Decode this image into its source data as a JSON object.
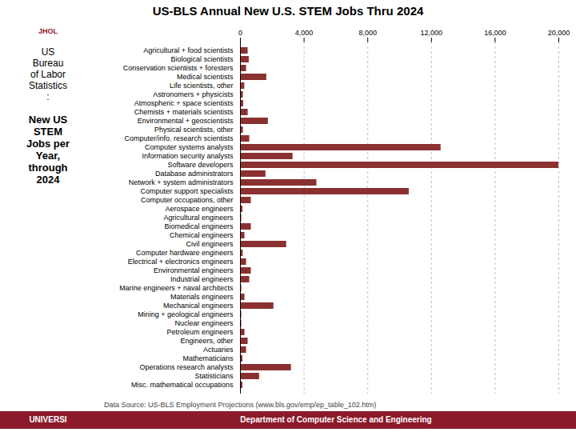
{
  "chart_data": {
    "type": "bar",
    "orientation": "horizontal",
    "title": "US-BLS Annual New U.S. STEM Jobs Thru 2024",
    "categories": [
      "Agricultural + food scientists",
      "Biological scientists",
      "Conservation scientists + foresters",
      "Medical scientists",
      "Life scientists, other",
      "Astronomers + physicists",
      "Atmospheric + space scientists",
      "Chemists + materials scientists",
      "Environmental + geoscientists",
      "Physical scientists, other",
      "Computer/info. research scientists",
      "Computer systems analysts",
      "Information security analysts",
      "Software developers",
      "Database administrators",
      "Network + system administrators",
      "Computer support specialists",
      "Computer occupations, other",
      "Aerospace engineers",
      "Agricultural engineers",
      "Biomedical engineers",
      "Chemical engineers",
      "Civil engineers",
      "Computer hardware engineers",
      "Electrical + electronics engineers",
      "Environmental engineers",
      "Industrial engineers",
      "Marine engineers + naval architects",
      "Materials engineers",
      "Mechanical engineers",
      "Mining + geological engineers",
      "Nuclear engineers",
      "Petroleum engineers",
      "Engineers, other",
      "Actuaries",
      "Mathematicians",
      "Operations research analysts",
      "Statisticians",
      "Misc. mathematical occupations"
    ],
    "values": [
      480,
      550,
      380,
      1650,
      270,
      180,
      200,
      480,
      1750,
      180,
      580,
      12600,
      3300,
      20000,
      1600,
      4800,
      10600,
      680,
      150,
      80,
      680,
      280,
      2900,
      170,
      380,
      680,
      580,
      80,
      280,
      2100,
      80,
      80,
      280,
      480,
      380,
      150,
      3200,
      1200,
      150
    ],
    "color": "#8b3030",
    "xlim": [
      0,
      20000
    ],
    "xticks": [
      0,
      {
        "value": 4000,
        "label": "4,000"
      },
      {
        "value": 8000,
        "label": "8,000"
      },
      {
        "value": 12000,
        "label": "12,000"
      },
      {
        "value": 16000,
        "label": "16,000"
      },
      {
        "value": 20000,
        "label": "20,000"
      }
    ],
    "grid": true,
    "annotations": [
      "JHOL",
      "US\nBureau\nof Labor\nStatistics\n:",
      "New US\nSTEM\nJobs per\nYear,\nthrough\n2024",
      "Data Source: US-BLS Employment Projections (www.bls.gov/emp/ep_table_102.htm)",
      "UNIVERSI",
      "Department of Computer Science and Engineering"
    ]
  }
}
